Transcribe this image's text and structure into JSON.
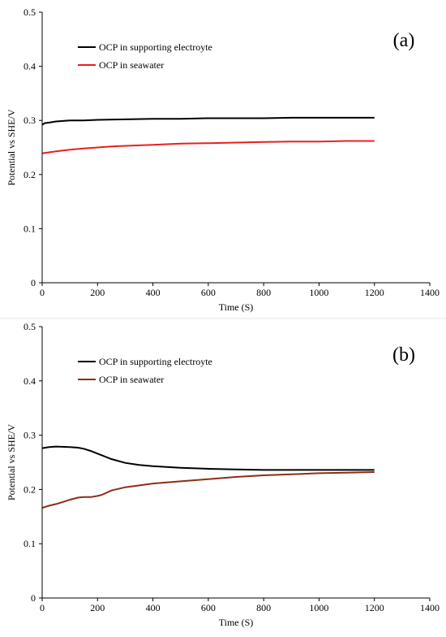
{
  "chart_data": [
    {
      "type": "line",
      "panel_label": "(a)",
      "xlabel": "Time (S)",
      "ylabel": "Potential vs SHE/V",
      "xlim": [
        0,
        1400
      ],
      "ylim": [
        0,
        0.5
      ],
      "xticks": [
        "0",
        "200",
        "400",
        "600",
        "800",
        "1000",
        "1200",
        "1400"
      ],
      "yticks": [
        "0",
        "0.1",
        "0.2",
        "0.3",
        "0.4",
        "0.5"
      ],
      "legend_position": "top-left",
      "grid": false,
      "series": [
        {
          "name": "OCP in supporting electroyte",
          "color": "#000000",
          "x": [
            0,
            10,
            25,
            50,
            100,
            150,
            200,
            300,
            400,
            500,
            600,
            700,
            800,
            900,
            1000,
            1100,
            1200
          ],
          "y": [
            0.292,
            0.295,
            0.296,
            0.298,
            0.3,
            0.3,
            0.301,
            0.302,
            0.303,
            0.303,
            0.304,
            0.304,
            0.304,
            0.305,
            0.305,
            0.305,
            0.305
          ]
        },
        {
          "name": "OCP in seawater",
          "color": "#e8201c",
          "x": [
            0,
            25,
            50,
            100,
            150,
            200,
            250,
            300,
            400,
            500,
            600,
            700,
            800,
            900,
            1000,
            1100,
            1200
          ],
          "y": [
            0.239,
            0.241,
            0.243,
            0.246,
            0.248,
            0.25,
            0.252,
            0.253,
            0.255,
            0.257,
            0.258,
            0.259,
            0.26,
            0.261,
            0.261,
            0.262,
            0.262
          ]
        }
      ]
    },
    {
      "type": "line",
      "panel_label": "(b)",
      "xlabel": "Time (S)",
      "ylabel": "Potential vs SHE/V",
      "xlim": [
        0,
        1400
      ],
      "ylim": [
        0,
        0.5
      ],
      "xticks": [
        "0",
        "200",
        "400",
        "600",
        "800",
        "1000",
        "1200",
        "1400"
      ],
      "yticks": [
        "0",
        "0.1",
        "0.2",
        "0.3",
        "0.4",
        "0.5"
      ],
      "legend_position": "top-left",
      "grid": false,
      "series": [
        {
          "name": "OCP in supporting electroyte",
          "color": "#000000",
          "x": [
            0,
            25,
            50,
            100,
            130,
            150,
            175,
            200,
            250,
            300,
            350,
            400,
            500,
            600,
            700,
            800,
            900,
            1000,
            1100,
            1200
          ],
          "y": [
            0.276,
            0.278,
            0.279,
            0.278,
            0.277,
            0.275,
            0.271,
            0.266,
            0.256,
            0.249,
            0.245,
            0.243,
            0.24,
            0.238,
            0.237,
            0.236,
            0.236,
            0.236,
            0.236,
            0.236
          ]
        },
        {
          "name": "OCP in seawater",
          "color": "#8b2e16",
          "x": [
            0,
            25,
            50,
            75,
            100,
            130,
            150,
            175,
            200,
            215,
            250,
            300,
            400,
            500,
            600,
            700,
            800,
            900,
            1000,
            1100,
            1200
          ],
          "y": [
            0.166,
            0.17,
            0.173,
            0.177,
            0.181,
            0.185,
            0.186,
            0.186,
            0.188,
            0.19,
            0.198,
            0.204,
            0.211,
            0.215,
            0.219,
            0.223,
            0.226,
            0.228,
            0.23,
            0.231,
            0.232
          ]
        }
      ]
    }
  ]
}
